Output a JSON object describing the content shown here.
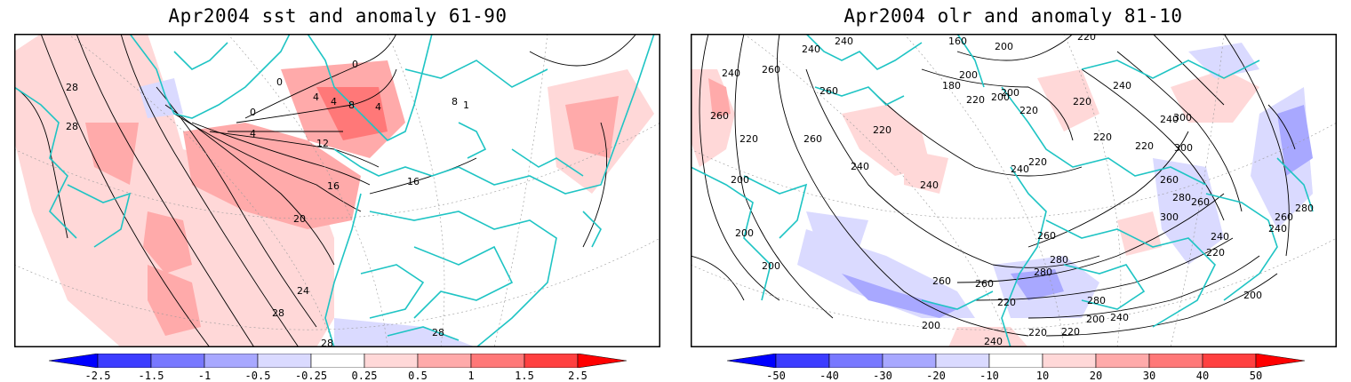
{
  "panels": [
    {
      "title": "Apr2004 sst and anomaly 61-90",
      "colorbar": {
        "ticks": [
          "-2.5",
          "-1.5",
          "-1",
          "-0.5",
          "-0.25",
          "0.25",
          "0.5",
          "1",
          "1.5",
          "2.5"
        ],
        "colors": [
          "#0000ff",
          "#3c3cff",
          "#7878ff",
          "#a8a8ff",
          "#dadaff",
          "#ffffff",
          "#ffd8d8",
          "#ffaaaa",
          "#ff7878",
          "#ff4040",
          "#ff0000"
        ]
      },
      "contours": [
        {
          "label": "28"
        },
        {
          "label": "28"
        },
        {
          "label": "0"
        },
        {
          "label": "0"
        },
        {
          "label": "4"
        },
        {
          "label": "4"
        },
        {
          "label": "4"
        },
        {
          "label": "8"
        },
        {
          "label": "0"
        },
        {
          "label": "4"
        },
        {
          "label": "12"
        },
        {
          "label": "16"
        },
        {
          "label": "16"
        },
        {
          "label": "20"
        },
        {
          "label": "24"
        },
        {
          "label": "28"
        },
        {
          "label": "28"
        },
        {
          "label": "28"
        },
        {
          "label": "8"
        },
        {
          "label": "1"
        }
      ]
    },
    {
      "title": "Apr2004 olr and anomaly 81-10",
      "colorbar": {
        "ticks": [
          "-50",
          "-40",
          "-30",
          "-20",
          "-10",
          "10",
          "20",
          "30",
          "40",
          "50"
        ],
        "colors": [
          "#0000ff",
          "#3c3cff",
          "#7878ff",
          "#a8a8ff",
          "#dadaff",
          "#ffffff",
          "#ffd8d8",
          "#ffaaaa",
          "#ff7878",
          "#ff4040",
          "#ff0000"
        ]
      },
      "contours": [
        {
          "label": "240"
        },
        {
          "label": "240"
        },
        {
          "label": "160"
        },
        {
          "label": "200"
        },
        {
          "label": "220"
        },
        {
          "label": "240"
        },
        {
          "label": "260"
        },
        {
          "label": "260"
        },
        {
          "label": "200"
        },
        {
          "label": "180"
        },
        {
          "label": "200"
        },
        {
          "label": "220"
        },
        {
          "label": "200"
        },
        {
          "label": "220"
        },
        {
          "label": "220"
        },
        {
          "label": "240"
        },
        {
          "label": "300"
        },
        {
          "label": "300"
        },
        {
          "label": "220"
        },
        {
          "label": "220"
        },
        {
          "label": "240"
        },
        {
          "label": "260"
        },
        {
          "label": "220"
        },
        {
          "label": "200"
        },
        {
          "label": "260"
        },
        {
          "label": "220"
        },
        {
          "label": "240"
        },
        {
          "label": "240"
        },
        {
          "label": "220"
        },
        {
          "label": "240"
        },
        {
          "label": "260"
        },
        {
          "label": "280"
        },
        {
          "label": "260"
        },
        {
          "label": "280"
        },
        {
          "label": "300"
        },
        {
          "label": "240"
        },
        {
          "label": "260"
        },
        {
          "label": "200"
        },
        {
          "label": "260"
        },
        {
          "label": "280"
        },
        {
          "label": "280"
        },
        {
          "label": "220"
        },
        {
          "label": "260"
        },
        {
          "label": "200"
        },
        {
          "label": "240"
        },
        {
          "label": "260"
        },
        {
          "label": "280"
        },
        {
          "label": "240"
        },
        {
          "label": "220"
        },
        {
          "label": "200"
        },
        {
          "label": "220"
        },
        {
          "label": "240"
        },
        {
          "label": "220"
        },
        {
          "label": "200"
        },
        {
          "label": "200"
        }
      ]
    }
  ]
}
